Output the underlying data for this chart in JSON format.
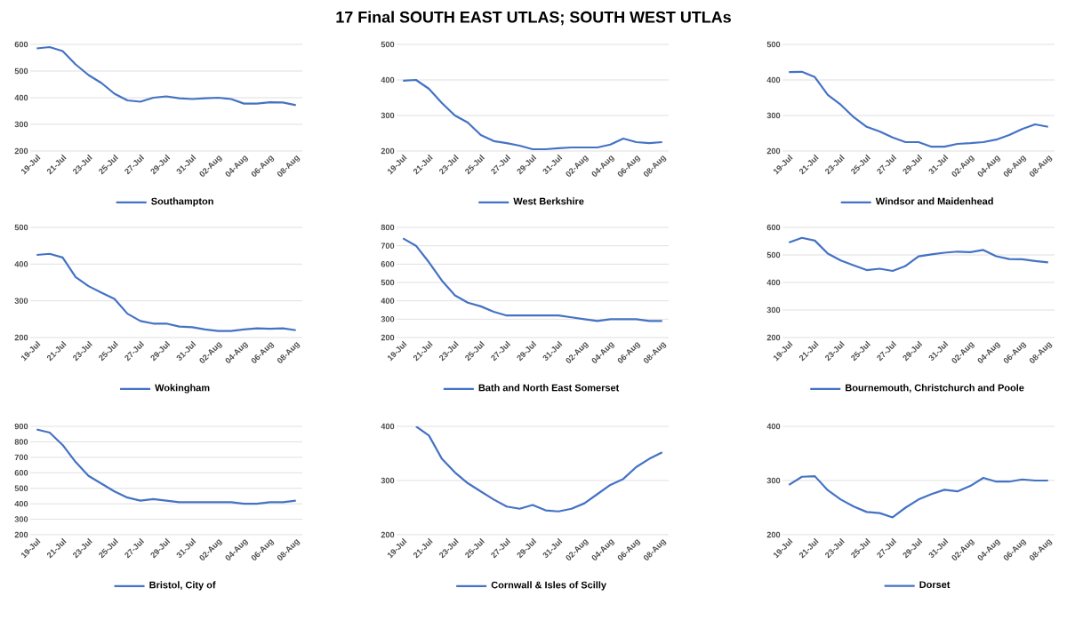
{
  "chart_data": [
    {
      "type": "line",
      "categories": [
        "19-Jul",
        null,
        "21-Jul",
        null,
        "23-Jul",
        null,
        "25-Jul",
        null,
        "27-Jul",
        null,
        "29-Jul",
        null,
        "31-Jul",
        null,
        "02-Aug",
        null,
        "04-Aug",
        null,
        "06-Aug",
        null,
        "08-Aug"
      ],
      "ylim": [
        200,
        600
      ],
      "yticks": [
        200,
        300,
        400,
        500,
        600
      ],
      "grid": "y",
      "legend": "bottom",
      "series": [
        {
          "name": "Southampton",
          "color": "#4472c4",
          "values": [
            585,
            590,
            575,
            525,
            485,
            455,
            415,
            390,
            385,
            400,
            405,
            398,
            395,
            398,
            400,
            395,
            378,
            378,
            383,
            382,
            372
          ]
        }
      ]
    },
    {
      "type": "line",
      "categories": [
        "19-Jul",
        null,
        "21-Jul",
        null,
        "23-Jul",
        null,
        "25-Jul",
        null,
        "27-Jul",
        null,
        "29-Jul",
        null,
        "31-Jul",
        null,
        "02-Aug",
        null,
        "04-Aug",
        null,
        "06-Aug",
        null,
        "08-Aug"
      ],
      "ylim": [
        200,
        500
      ],
      "yticks": [
        200,
        300,
        400,
        500
      ],
      "grid": "y",
      "legend": "bottom",
      "title": "17 Final SOUTH EAST UTLAS; SOUTH WEST UTLAs",
      "series": [
        {
          "name": "West Berkshire",
          "color": "#4472c4",
          "values": [
            398,
            400,
            375,
            335,
            300,
            280,
            245,
            228,
            222,
            215,
            205,
            205,
            208,
            210,
            210,
            210,
            218,
            235,
            225,
            222,
            225
          ]
        }
      ]
    },
    {
      "type": "line",
      "categories": [
        "19-Jul",
        null,
        "21-Jul",
        null,
        "23-Jul",
        null,
        "25-Jul",
        null,
        "27-Jul",
        null,
        "29-Jul",
        null,
        "31-Jul",
        null,
        "02-Aug",
        null,
        "04-Aug",
        null,
        "06-Aug",
        null,
        "08-Aug"
      ],
      "ylim": [
        200,
        500
      ],
      "yticks": [
        200,
        300,
        400,
        500
      ],
      "grid": "y",
      "legend": "bottom",
      "series": [
        {
          "name": "Windsor and Maidenhead",
          "color": "#4472c4",
          "values": [
            422,
            423,
            408,
            358,
            330,
            295,
            268,
            255,
            238,
            225,
            225,
            212,
            212,
            220,
            222,
            225,
            232,
            245,
            262,
            275,
            268
          ]
        }
      ]
    },
    {
      "type": "line",
      "categories": [
        "19-Jul",
        null,
        "21-Jul",
        null,
        "23-Jul",
        null,
        "25-Jul",
        null,
        "27-Jul",
        null,
        "29-Jul",
        null,
        "31-Jul",
        null,
        "02-Aug",
        null,
        "04-Aug",
        null,
        "06-Aug",
        null,
        "08-Aug"
      ],
      "ylim": [
        200,
        500
      ],
      "yticks": [
        200,
        300,
        400,
        500
      ],
      "grid": "y",
      "legend": "bottom",
      "series": [
        {
          "name": "Wokingham",
          "color": "#4472c4",
          "values": [
            425,
            428,
            418,
            365,
            340,
            322,
            305,
            265,
            245,
            238,
            238,
            230,
            228,
            222,
            218,
            218,
            222,
            225,
            224,
            225,
            220
          ]
        }
      ]
    },
    {
      "type": "line",
      "categories": [
        "19-Jul",
        null,
        "21-Jul",
        null,
        "23-Jul",
        null,
        "25-Jul",
        null,
        "27-Jul",
        null,
        "29-Jul",
        null,
        "31-Jul",
        null,
        "02-Aug",
        null,
        "04-Aug",
        null,
        "06-Aug",
        null,
        "08-Aug"
      ],
      "ylim": [
        200,
        800
      ],
      "yticks": [
        200,
        300,
        400,
        500,
        600,
        700,
        800
      ],
      "grid": "y",
      "legend": "bottom",
      "series": [
        {
          "name": "Bath and North East Somerset",
          "color": "#4472c4",
          "values": [
            740,
            700,
            610,
            510,
            430,
            390,
            370,
            340,
            320,
            320,
            320,
            320,
            320,
            310,
            300,
            290,
            300,
            300,
            300,
            290,
            290
          ]
        }
      ]
    },
    {
      "type": "line",
      "categories": [
        "19-Jul",
        null,
        "21-Jul",
        null,
        "23-Jul",
        null,
        "25-Jul",
        null,
        "27-Jul",
        null,
        "29-Jul",
        null,
        "31-Jul",
        null,
        "02-Aug",
        null,
        "04-Aug",
        null,
        "06-Aug",
        null,
        "08-Aug"
      ],
      "ylim": [
        200,
        600
      ],
      "yticks": [
        200,
        300,
        400,
        500,
        600
      ],
      "grid": "y",
      "legend": "bottom",
      "series": [
        {
          "name": "Bournemouth, Christchurch and Poole",
          "color": "#4472c4",
          "values": [
            545,
            562,
            552,
            505,
            480,
            462,
            445,
            450,
            442,
            460,
            495,
            502,
            508,
            512,
            510,
            518,
            495,
            485,
            484,
            478,
            473
          ]
        }
      ]
    },
    {
      "type": "line",
      "categories": [
        "19-Jul",
        null,
        "21-Jul",
        null,
        "23-Jul",
        null,
        "25-Jul",
        null,
        "27-Jul",
        null,
        "29-Jul",
        null,
        "31-Jul",
        null,
        "02-Aug",
        null,
        "04-Aug",
        null,
        "06-Aug",
        null,
        "08-Aug"
      ],
      "ylim": [
        200,
        900
      ],
      "yticks": [
        200,
        300,
        400,
        500,
        600,
        700,
        800,
        900
      ],
      "grid": "y",
      "legend": "bottom",
      "series": [
        {
          "name": "Bristol, City of",
          "color": "#4472c4",
          "values": [
            880,
            860,
            780,
            670,
            580,
            530,
            480,
            440,
            420,
            430,
            420,
            410,
            410,
            410,
            410,
            410,
            400,
            400,
            410,
            410,
            420
          ]
        }
      ]
    },
    {
      "type": "line",
      "categories": [
        "19-Jul",
        null,
        "21-Jul",
        null,
        "23-Jul",
        null,
        "25-Jul",
        null,
        "27-Jul",
        null,
        "29-Jul",
        null,
        "31-Jul",
        null,
        "02-Aug",
        null,
        "04-Aug",
        null,
        "06-Aug",
        null,
        "08-Aug"
      ],
      "ylim": [
        200,
        400
      ],
      "yticks": [
        200,
        300,
        400
      ],
      "grid": "y",
      "legend": "bottom",
      "series": [
        {
          "name": "Cornwall & Isles of Scilly",
          "color": "#4472c4",
          "values": [
            null,
            400,
            383,
            340,
            315,
            295,
            280,
            265,
            252,
            248,
            255,
            245,
            243,
            248,
            258,
            275,
            292,
            303,
            325,
            340,
            352
          ]
        }
      ]
    },
    {
      "type": "line",
      "categories": [
        "19-Jul",
        null,
        "21-Jul",
        null,
        "23-Jul",
        null,
        "25-Jul",
        null,
        "27-Jul",
        null,
        "29-Jul",
        null,
        "31-Jul",
        null,
        "02-Aug",
        null,
        "04-Aug",
        null,
        "06-Aug",
        null,
        "08-Aug"
      ],
      "ylim": [
        200,
        400
      ],
      "yticks": [
        200,
        300,
        400
      ],
      "grid": "y",
      "legend": "bottom",
      "series": [
        {
          "name": "Dorset",
          "color": "#4472c4",
          "values": [
            292,
            307,
            308,
            282,
            265,
            252,
            242,
            240,
            232,
            250,
            265,
            275,
            283,
            280,
            290,
            305,
            298,
            298,
            302,
            300,
            300
          ]
        }
      ]
    }
  ]
}
